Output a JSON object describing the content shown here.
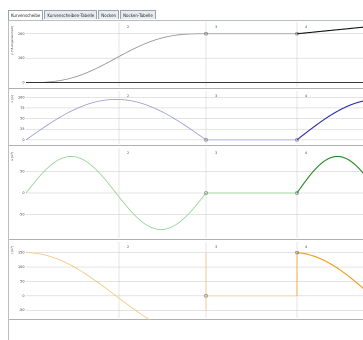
{
  "tabs": [
    {
      "label": "Kurvenscheibe",
      "active": true
    },
    {
      "label": "Kurvenscheiben-Tabelle",
      "active": false
    },
    {
      "label": "Nocken",
      "active": false
    },
    {
      "label": "Nocken-Tabelle",
      "active": false
    }
  ],
  "colors": {
    "grid": "#c9c9c9",
    "marker": "#555555"
  },
  "panels": [
    {
      "id": "position",
      "axis_label": "y [°/Längeneinheit]",
      "ylim": [
        -10,
        240
      ],
      "ticks": [
        {
          "value": 200,
          "label": "200"
        },
        {
          "value": 100,
          "label": "100"
        },
        {
          "value": 0,
          "label": "0"
        }
      ],
      "color_light": "#8e8e8e",
      "color_dark": "#111111",
      "x_labels": [
        {
          "x": 118,
          "label": "2"
        },
        {
          "x": 206,
          "label": "3"
        },
        {
          "x": 296,
          "label": "4"
        }
      ]
    },
    {
      "id": "velocity",
      "axis_label": "v [/s]",
      "ylim": [
        -5,
        110
      ],
      "ticks": [
        {
          "value": 100,
          "label": "100"
        },
        {
          "value": 75,
          "label": "75"
        },
        {
          "value": 50,
          "label": "50"
        },
        {
          "value": 25,
          "label": "25"
        },
        {
          "value": 0,
          "label": "0"
        }
      ],
      "color_light": "#9a9ad6",
      "color_dark": "#2a2ab0",
      "x_labels": [
        {
          "x": 118,
          "label": "2"
        },
        {
          "x": 206,
          "label": "3"
        },
        {
          "x": 296,
          "label": "4"
        }
      ]
    },
    {
      "id": "acceleration",
      "axis_label": "a [/s²]",
      "ylim": [
        -100,
        100
      ],
      "ticks": [
        {
          "value": 50,
          "label": "50"
        },
        {
          "value": 0,
          "label": "0"
        },
        {
          "value": -50,
          "label": "-50"
        }
      ],
      "color_light": "#8fd08f",
      "color_dark": "#1e8a1e",
      "x_labels": [
        {
          "x": 118,
          "label": "2"
        },
        {
          "x": 206,
          "label": "3"
        },
        {
          "x": 296,
          "label": "4"
        }
      ]
    },
    {
      "id": "jerk",
      "axis_label": "j [/s³]",
      "ylim": [
        -70,
        180
      ],
      "ticks": [
        {
          "value": 150,
          "label": "150"
        },
        {
          "value": 100,
          "label": "100"
        },
        {
          "value": 50,
          "label": "50"
        },
        {
          "value": 0,
          "label": "0"
        },
        {
          "value": -50,
          "label": "-50"
        }
      ],
      "color_light": "#f3c57a",
      "color_dark": "#f39a1a",
      "x_labels": [
        {
          "x": 118,
          "label": "2"
        },
        {
          "x": 206,
          "label": "3"
        },
        {
          "x": 296,
          "label": "4"
        }
      ]
    }
  ]
}
